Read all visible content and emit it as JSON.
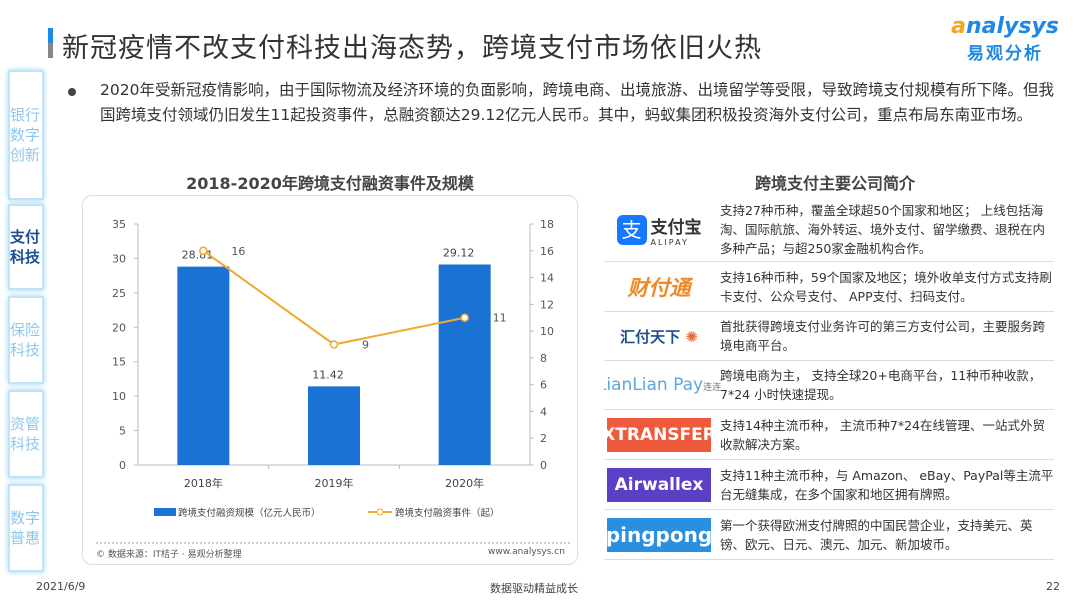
{
  "header": {
    "title": "新冠疫情不改支付科技出海态势，跨境支付市场依旧火热",
    "logo_en": "nalysys",
    "logo_en_a": "a",
    "logo_cn": "易观分析"
  },
  "sidebar": {
    "items": [
      {
        "label": "银行数字创新",
        "active": false
      },
      {
        "label": "支付科技",
        "active": true
      },
      {
        "label": "保险科技",
        "active": false
      },
      {
        "label": "资管科技",
        "active": false
      },
      {
        "label": "数字普惠",
        "active": false
      }
    ]
  },
  "intro": "2020年受新冠疫情影响，由于国际物流及经济环境的负面影响，跨境电商、出境旅游、出境留学等受限，导致跨境支付规模有所下降。但我国跨境支付领域仍旧发生11起投资事件，总融资额达29.12亿元人民币。其中，蚂蚁集团积极投资海外支付公司，重点布局东南亚市场。",
  "chart_data": {
    "type": "bar+line",
    "title": "2018-2020年跨境支付融资事件及规模",
    "categories": [
      "2018年",
      "2019年",
      "2020年"
    ],
    "series": [
      {
        "name": "跨境支付融资规模（亿元人民币）",
        "type": "bar",
        "axis": "left",
        "values": [
          28.81,
          11.42,
          29.12
        ],
        "color": "#1a73d4"
      },
      {
        "name": "跨境支付融资事件（起）",
        "type": "line",
        "axis": "right",
        "values": [
          16,
          9,
          11
        ],
        "color": "#f0a830"
      }
    ],
    "ylim_left": [
      0,
      35
    ],
    "yticks_left": [
      0,
      5,
      10,
      15,
      20,
      25,
      30,
      35
    ],
    "ylim_right": [
      0,
      18
    ],
    "yticks_right": [
      0,
      2,
      4,
      6,
      8,
      10,
      12,
      14,
      16,
      18
    ],
    "legend": "bottom",
    "source": "© 数据来源：IT桔子 · 易观分析整理",
    "url": "www.analysys.cn"
  },
  "companies": {
    "title": "跨境支付主要公司简介",
    "items": [
      {
        "logo": "支付宝",
        "logo_sub": "ALIPAY",
        "desc": "支持27种币种，覆盖全球超50个国家和地区； 上线包括海淘、国际航旅、海外转运、境外支付、留学缴费、退税在内多种产品；与超250家金融机构合作。"
      },
      {
        "logo": "财付通",
        "desc": "支持16种币种，59个国家及地区；境外收单支付方式支持刷卡支付、公众号支付、 APP支付、扫码支付。"
      },
      {
        "logo": "汇付天下",
        "desc": "首批获得跨境支付业务许可的第三方支付公司，主要服务跨境电商平台。"
      },
      {
        "logo": "LianLian Pay",
        "logo_sub": "连连",
        "desc": "跨境电商为主， 支持全球20+电商平台，11种币种收款，7*24 小时快速提现。"
      },
      {
        "logo": "XTRANSFER",
        "color": "#f05a3c",
        "desc": "支持14种主流币种， 主流币种7*24在线管理、一站式外贸收款解决方案。"
      },
      {
        "logo": "Airwallex",
        "color": "#5b3fc4",
        "desc": "支持11种主流币种，与 Amazon、 eBay、PayPal等主流平台无缝集成，在多个国家和地区拥有牌照。"
      },
      {
        "logo": "pingpong",
        "color": "#2b8fe0",
        "desc": "第一个获得欧洲支付牌照的中国民营企业，支持美元、英镑、欧元、日元、澳元、加元、新加坡币。"
      }
    ]
  },
  "footer": {
    "date": "2021/6/9",
    "slogan": "数据驱动精益成长",
    "page": "22"
  }
}
